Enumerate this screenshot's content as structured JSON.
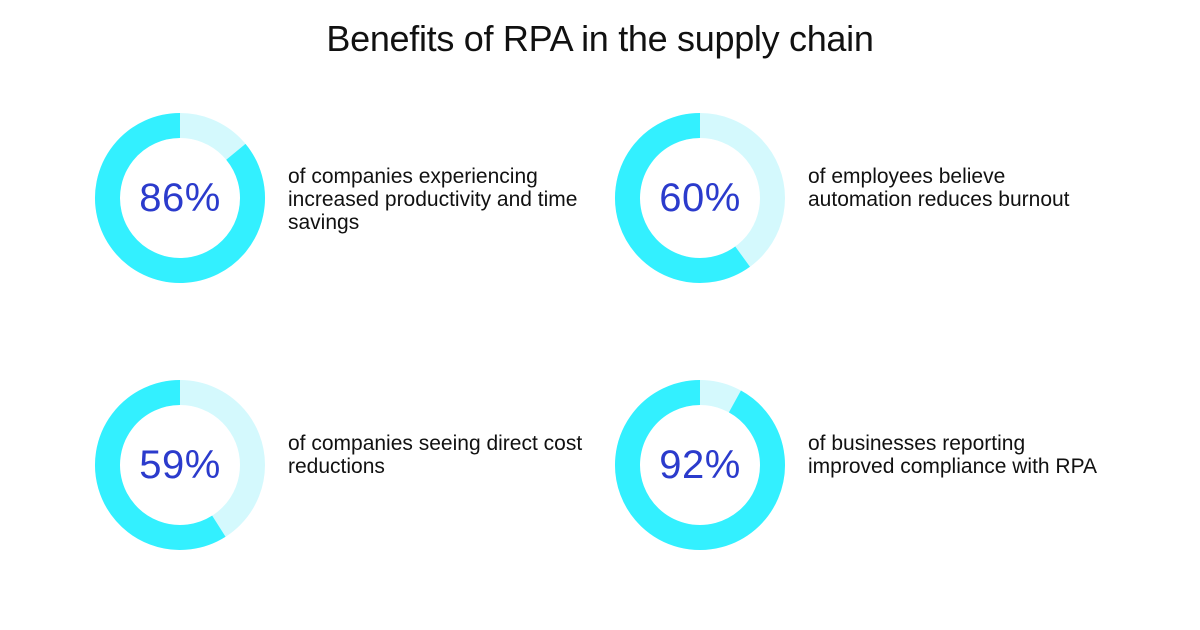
{
  "title": "Benefits of RPA in the supply chain",
  "colors": {
    "ring_fill": "#33f0ff",
    "ring_track": "#d4f9fd",
    "percent_text": "#2b3bcc"
  },
  "chart_data": {
    "type": "donut",
    "title": "Benefits of RPA in the supply chain",
    "items": [
      {
        "value": 86,
        "value_label": "86%",
        "text": "of companies experiencing increased productivity and time savings"
      },
      {
        "value": 60,
        "value_label": "60%",
        "text": "of employees believe automation reduces burnout"
      },
      {
        "value": 59,
        "value_label": "59%",
        "text": "of companies seeing direct cost reductions"
      },
      {
        "value": 92,
        "value_label": "92%",
        "text": "of businesses reporting improved compliance with RPA"
      }
    ]
  }
}
